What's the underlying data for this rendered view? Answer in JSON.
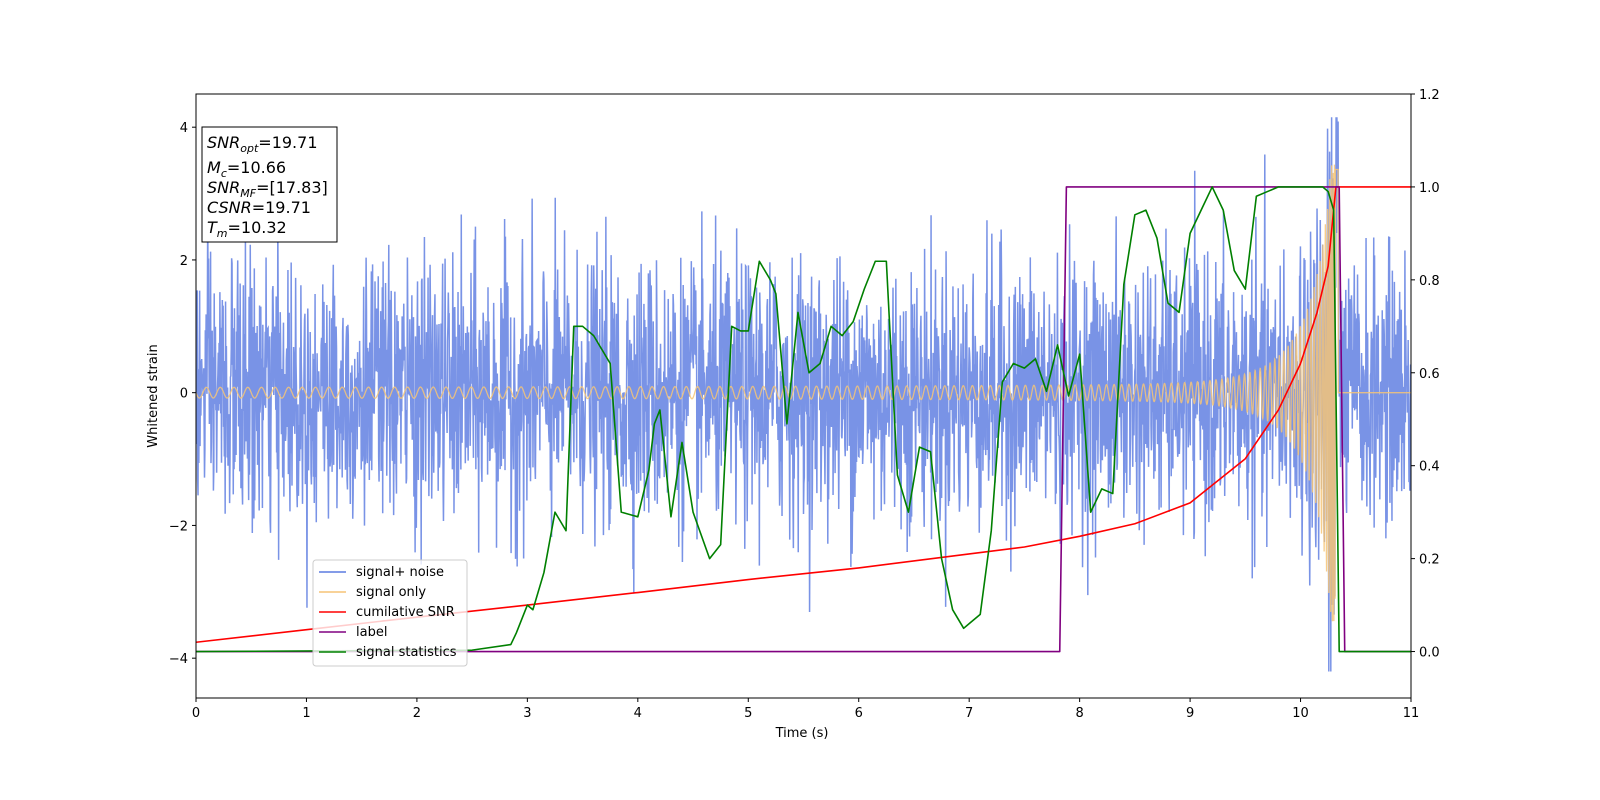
{
  "chart_data": {
    "type": "line",
    "xlabel": "Time (s)",
    "ylabel_left": "Whitened strain",
    "ylabel_right": "",
    "xlim": [
      0,
      11
    ],
    "ylim_left": [
      -4.6,
      4.5
    ],
    "ylim_right": [
      -0.1,
      1.2
    ],
    "x_ticks": [
      "0",
      "1",
      "2",
      "3",
      "4",
      "5",
      "6",
      "7",
      "8",
      "9",
      "10",
      "11"
    ],
    "y_left_ticks": [
      "−4",
      "−2",
      "0",
      "2",
      "4"
    ],
    "y_right_ticks": [
      "0.0",
      "0.2",
      "0.4",
      "0.6",
      "0.8",
      "1.0",
      "1.2"
    ],
    "grid": false,
    "legend_position": "lower-left",
    "info_box": {
      "snr_opt": {
        "base": "SNR",
        "sub": "opt",
        "value": "=19.71"
      },
      "mc": {
        "base": "M",
        "sub": "c",
        "value": "=10.66"
      },
      "snr_mf": {
        "base": "SNR",
        "sub": "MF",
        "value": "=[17.83]"
      },
      "csnr": {
        "base": "CSNR",
        "sub": "",
        "value": "=19.71"
      },
      "tm": {
        "base": "T",
        "sub": "m",
        "value": "=10.32"
      }
    },
    "series": [
      {
        "name": "signal+ noise",
        "color": "#5b7be0",
        "axis": "left",
        "noise_sigma": 1.0,
        "x_range": [
          0,
          11
        ]
      },
      {
        "name": "signal only",
        "color": "#f5c477",
        "axis": "left",
        "merger_time": 10.32,
        "peak_amplitude": 3.45,
        "early_amplitude": 0.08,
        "x_range": [
          0,
          11
        ]
      },
      {
        "name": "cumilative SNR",
        "color": "#ff0000",
        "axis": "right",
        "x": [
          0,
          1,
          2,
          3,
          4,
          5,
          6,
          7,
          7.5,
          8,
          8.5,
          9,
          9.5,
          9.8,
          10,
          10.15,
          10.25,
          10.32,
          11
        ],
        "y": [
          0.02,
          0.047,
          0.074,
          0.1,
          0.127,
          0.155,
          0.18,
          0.21,
          0.225,
          0.248,
          0.275,
          0.32,
          0.415,
          0.52,
          0.62,
          0.73,
          0.83,
          1.0,
          1.0
        ]
      },
      {
        "name": "label",
        "color": "#800080",
        "axis": "right",
        "x": [
          0,
          7.82,
          7.88,
          10.35,
          10.4,
          11
        ],
        "y": [
          0.0,
          0.0,
          1.0,
          1.0,
          0.0,
          0.0
        ]
      },
      {
        "name": "signal statistics",
        "color": "#008000",
        "axis": "right",
        "x": [
          0,
          2.5,
          2.85,
          2.9,
          3.0,
          3.05,
          3.15,
          3.25,
          3.35,
          3.42,
          3.5,
          3.6,
          3.75,
          3.85,
          4.0,
          4.1,
          4.15,
          4.2,
          4.3,
          4.4,
          4.5,
          4.65,
          4.75,
          4.85,
          4.93,
          5.0,
          5.1,
          5.2,
          5.25,
          5.35,
          5.45,
          5.55,
          5.65,
          5.75,
          5.85,
          5.95,
          6.05,
          6.15,
          6.25,
          6.35,
          6.45,
          6.55,
          6.65,
          6.75,
          6.85,
          6.95,
          7.0,
          7.1,
          7.2,
          7.3,
          7.4,
          7.5,
          7.6,
          7.7,
          7.8,
          7.9,
          8.0,
          8.1,
          8.2,
          8.3,
          8.4,
          8.5,
          8.6,
          8.7,
          8.8,
          8.9,
          9.0,
          9.1,
          9.2,
          9.3,
          9.4,
          9.5,
          9.6,
          9.7,
          9.8,
          9.9,
          10.0,
          10.1,
          10.2,
          10.25,
          10.3,
          10.35,
          10.4,
          11
        ],
        "y": [
          0.0,
          0.003,
          0.015,
          0.04,
          0.1,
          0.09,
          0.17,
          0.3,
          0.26,
          0.7,
          0.7,
          0.68,
          0.62,
          0.3,
          0.29,
          0.39,
          0.49,
          0.52,
          0.29,
          0.45,
          0.3,
          0.2,
          0.23,
          0.7,
          0.69,
          0.69,
          0.84,
          0.8,
          0.77,
          0.49,
          0.73,
          0.6,
          0.62,
          0.7,
          0.68,
          0.71,
          0.78,
          0.84,
          0.84,
          0.38,
          0.3,
          0.44,
          0.43,
          0.2,
          0.09,
          0.05,
          0.06,
          0.08,
          0.26,
          0.58,
          0.62,
          0.61,
          0.63,
          0.56,
          0.66,
          0.55,
          0.64,
          0.3,
          0.35,
          0.34,
          0.79,
          0.94,
          0.95,
          0.89,
          0.75,
          0.73,
          0.9,
          0.95,
          1.0,
          0.95,
          0.82,
          0.78,
          0.98,
          0.99,
          1.0,
          1.0,
          1.0,
          1.0,
          1.0,
          0.99,
          0.95,
          0.0,
          0.0,
          0.0
        ]
      }
    ]
  }
}
